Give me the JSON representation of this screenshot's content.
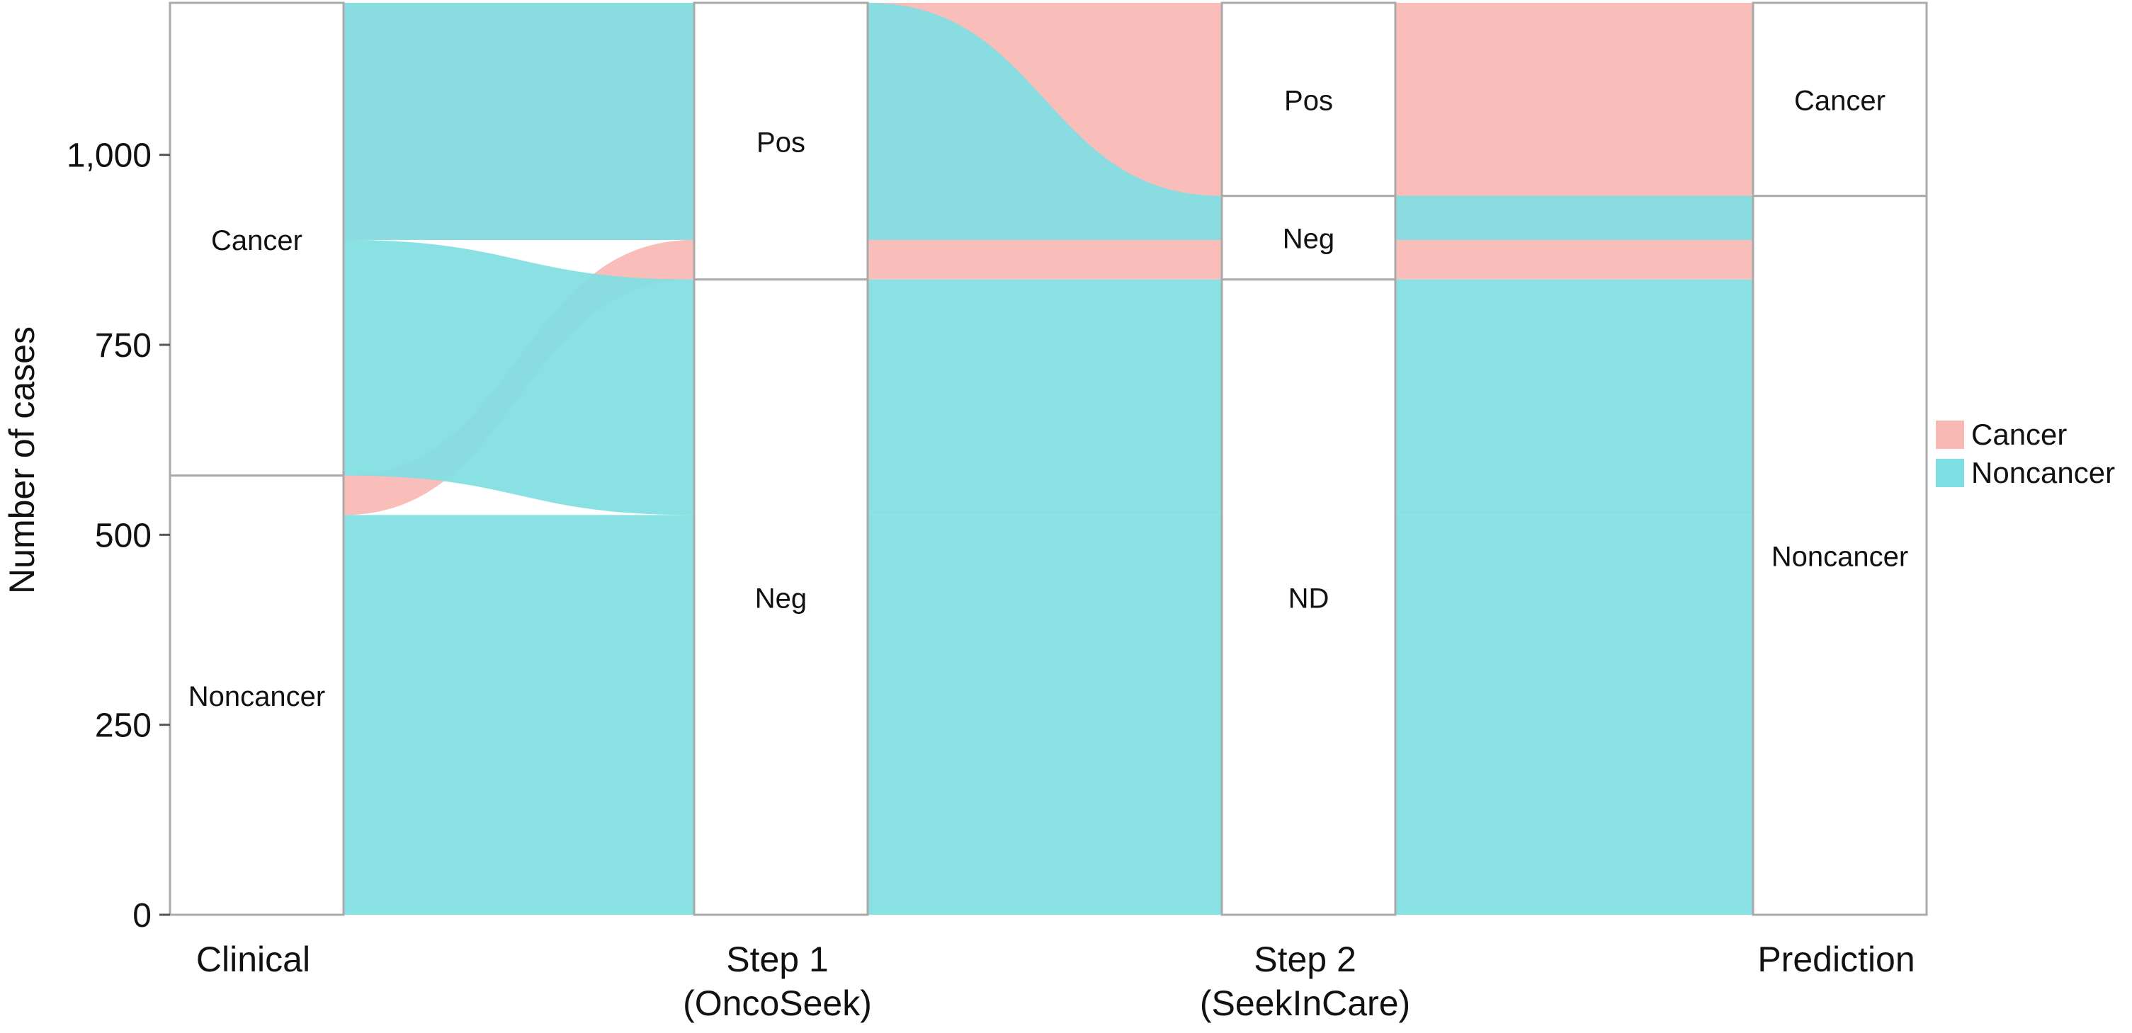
{
  "chart_data": {
    "type": "alluvial",
    "title": "",
    "ylabel": "Number of cases",
    "xlabel": "",
    "ylim": [
      0,
      1200
    ],
    "yticks": [
      0,
      250,
      500,
      750,
      1000
    ],
    "ytick_labels": [
      "0",
      "250",
      "500",
      "750",
      "1,000"
    ],
    "axes": [
      {
        "label_lines": [
          "Clinical"
        ],
        "strata": [
          {
            "label": "Noncancer",
            "from": 0,
            "to": 578
          },
          {
            "label": "Cancer",
            "from": 578,
            "to": 1200
          }
        ]
      },
      {
        "label_lines": [
          "Step 1",
          "(OncoSeek)"
        ],
        "strata": [
          {
            "label": "Neg",
            "from": 0,
            "to": 836
          },
          {
            "label": "Pos",
            "from": 836,
            "to": 1200
          }
        ]
      },
      {
        "label_lines": [
          "Step 2",
          "(SeekInCare)"
        ],
        "strata": [
          {
            "label": "ND",
            "from": 0,
            "to": 836
          },
          {
            "label": "Neg",
            "from": 836,
            "to": 946
          },
          {
            "label": "Pos",
            "from": 946,
            "to": 1200
          }
        ]
      },
      {
        "label_lines": [
          "Prediction"
        ],
        "strata": [
          {
            "label": "Noncancer",
            "from": 0,
            "to": 946
          },
          {
            "label": "Cancer",
            "from": 946,
            "to": 1200
          }
        ]
      }
    ],
    "flows": [
      {
        "series": "Noncancer",
        "stops": [
          [
            0,
            526
          ],
          [
            0,
            526
          ],
          [
            0,
            526
          ],
          [
            0,
            526
          ]
        ]
      },
      {
        "series": "Cancer",
        "stops": [
          [
            526,
            578
          ],
          [
            836,
            888
          ],
          [
            836,
            888
          ],
          [
            836,
            888
          ]
        ]
      },
      {
        "series": "Noncancer",
        "stops": [
          [
            578,
            888
          ],
          [
            526,
            836
          ],
          [
            526,
            836
          ],
          [
            526,
            836
          ]
        ]
      },
      {
        "series": "Cancer",
        "stops": [
          [
            888,
            1200
          ],
          [
            888,
            1200
          ],
          [
            888,
            1200
          ],
          [
            888,
            1200
          ]
        ]
      },
      {
        "series": "Noncancer",
        "stops": [
          [
            888,
            1200
          ],
          [
            888,
            1200
          ],
          [
            888,
            946
          ],
          [
            888,
            946
          ]
        ]
      }
    ],
    "legend": {
      "position": "right",
      "entries": [
        {
          "name": "Cancer",
          "color": "#F8B8B4"
        },
        {
          "name": "Noncancer",
          "color": "#7FDEE2"
        }
      ]
    },
    "colors": {
      "Cancer": "#F8B8B4",
      "Noncancer": "#7FDEE2",
      "stratum_border": "#aaaaaa"
    }
  }
}
